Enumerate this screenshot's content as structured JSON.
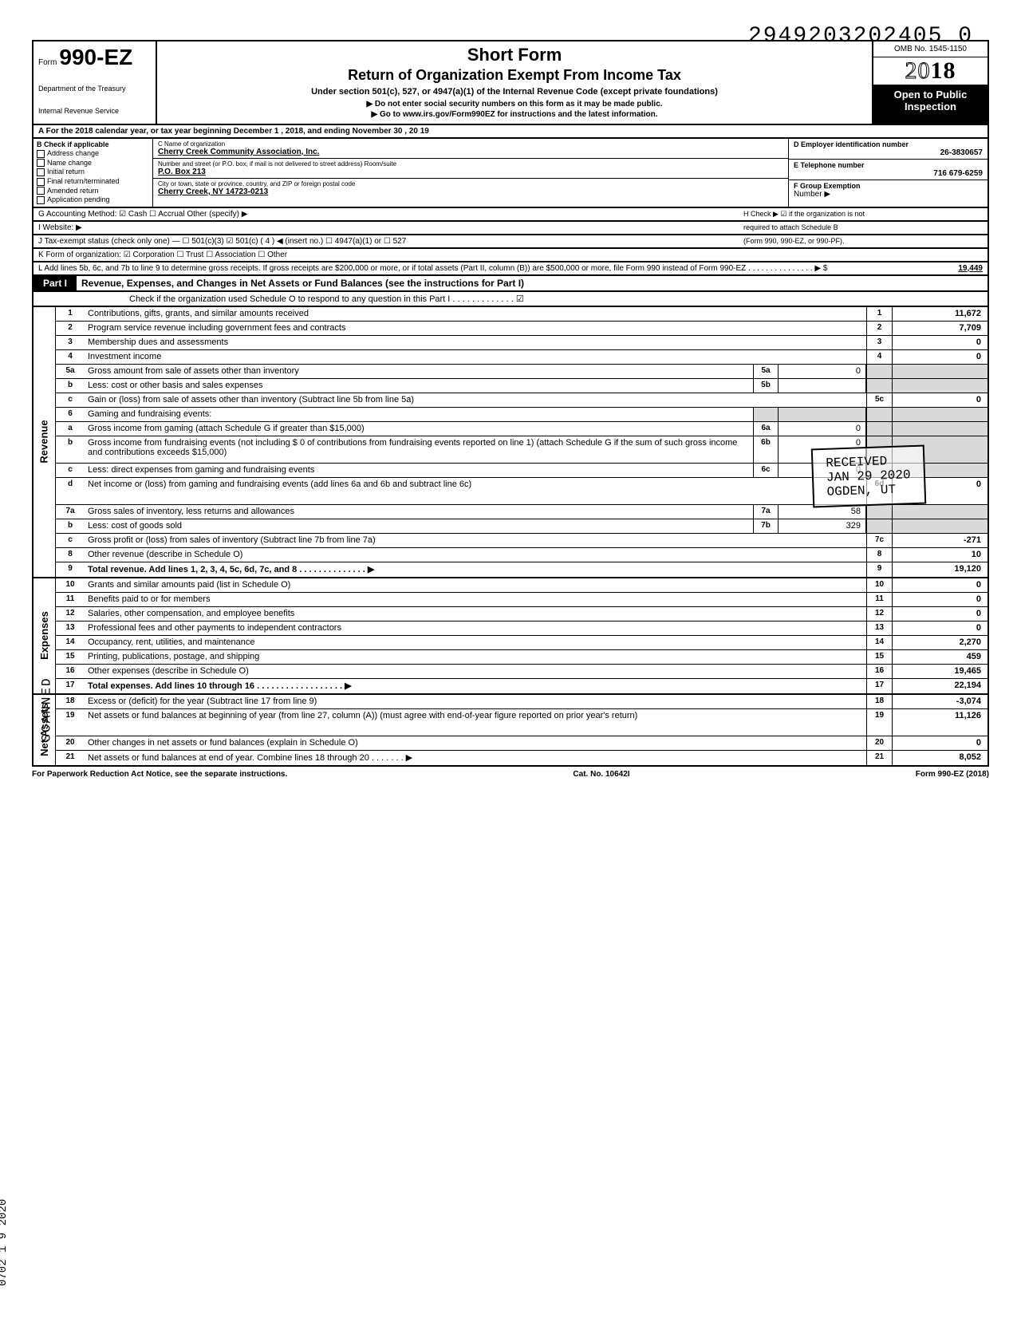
{
  "page_number_top": "2949203202405  0",
  "header": {
    "form_prefix": "Form",
    "form_number": "990-EZ",
    "small_form": "",
    "short_form": "Short Form",
    "return_title": "Return of Organization Exempt From Income Tax",
    "subtitle": "Under section 501(c), 527, or 4947(a)(1) of the Internal Revenue Code (except private foundations)",
    "line1": "▶ Do not enter social security numbers on this form as it may be made public.",
    "line2": "▶ Go to www.irs.gov/Form990EZ for instructions and the latest information.",
    "dept1": "Department of the Treasury",
    "dept2": "Internal Revenue Service",
    "omb": "OMB No. 1545-1150",
    "year": "2018",
    "open1": "Open to Public",
    "open2": "Inspection"
  },
  "rowA": "A  For the 2018 calendar year, or tax year beginning              December 1         , 2018, and ending           November 30        , 20   19",
  "colB": {
    "title": "B  Check if applicable",
    "items": [
      "Address change",
      "Name change",
      "Initial return",
      "Final return/terminated",
      "Amended return",
      "Application pending"
    ]
  },
  "colC": {
    "c_label": "C  Name of organization",
    "c_value": "Cherry Creek Community Association, Inc.",
    "street_label": "Number and street (or P.O. box, if mail is not delivered to street address)              Room/suite",
    "street_value": "P.O. Box 213",
    "city_label": "City or town, state or province, country, and ZIP or foreign postal code",
    "city_value": "Cherry Creek, NY 14723-0213"
  },
  "colR": {
    "d_label": "D Employer identification number",
    "d_value": "26-3830657",
    "e_label": "E Telephone number",
    "e_value": "716 679-6259",
    "f_label": "F Group Exemption",
    "f_label2": "Number ▶"
  },
  "rowG": {
    "left": "G  Accounting Method:    ☑ Cash    ☐ Accrual    Other (specify) ▶",
    "right": "H  Check ▶ ☑ if the organization is not"
  },
  "rowI": {
    "left": "I    Website: ▶",
    "right": "required to attach Schedule B"
  },
  "rowJ": {
    "left": "J  Tax-exempt status (check only one) — ☐ 501(c)(3)   ☑ 501(c) (  4  ) ◀ (insert no.)  ☐ 4947(a)(1) or   ☐ 527",
    "right": "(Form 990, 990-EZ, or 990-PF)."
  },
  "rowK": "K  Form of organization:   ☑ Corporation    ☐ Trust    ☐ Association    ☐ Other",
  "rowL": {
    "text": "L  Add lines 5b, 6c, and 7b to line 9 to determine gross receipts. If gross receipts are $200,000 or more, or if total assets (Part II, column (B)) are $500,000 or more, file Form 990 instead of Form 990-EZ  .  .  .  .  .  .  .  .  .  .  .  .  .  .  .  ▶   $",
    "value": "19,449"
  },
  "partI": {
    "label": "Part I",
    "title": "Revenue, Expenses, and Changes in Net Assets or Fund Balances (see the instructions for Part I)",
    "check": "Check if the organization used Schedule O to respond to any question in this Part I  .  .  .  .  .  .  .  .  .  .  .  .  .  ☑"
  },
  "stamp": {
    "l1": "RECEIVED",
    "l2": "JAN 29 2020",
    "l3": "OGDEN, UT"
  },
  "revenue_lines": [
    {
      "n": "1",
      "d": "Contributions, gifts, grants, and similar amounts received",
      "rn": "1",
      "rv": "11,672"
    },
    {
      "n": "2",
      "d": "Program service revenue including government fees and contracts",
      "rn": "2",
      "rv": "7,709"
    },
    {
      "n": "3",
      "d": "Membership dues and assessments",
      "rn": "3",
      "rv": "0"
    },
    {
      "n": "4",
      "d": "Investment income",
      "rn": "4",
      "rv": "0"
    },
    {
      "n": "5a",
      "d": "Gross amount from sale of assets other than inventory",
      "mn": "5a",
      "mv": "0",
      "shadeR": true
    },
    {
      "n": "b",
      "d": "Less: cost or other basis and sales expenses",
      "mn": "5b",
      "mv": "",
      "shadeR": true
    },
    {
      "n": "c",
      "d": "Gain or (loss) from sale of assets other than inventory (Subtract line 5b from line 5a)",
      "rn": "5c",
      "rv": "0"
    },
    {
      "n": "6",
      "d": "Gaming and fundraising events:",
      "shadeR": true,
      "shadeM": true
    },
    {
      "n": "a",
      "d": "Gross income from gaming (attach Schedule G if greater than $15,000)",
      "mn": "6a",
      "mv": "0",
      "shadeR": true
    },
    {
      "n": "b",
      "d": "Gross income from fundraising events (not including  $                 0 of contributions from fundraising events reported on line 1) (attach Schedule G if the sum of such gross income and contributions exceeds $15,000)",
      "mn": "6b",
      "mv": "0",
      "shadeR": true,
      "tall": true
    },
    {
      "n": "c",
      "d": "Less: direct expenses from gaming and fundraising events",
      "mn": "6c",
      "mv": "0",
      "shadeR": true
    },
    {
      "n": "d",
      "d": "Net income or (loss) from gaming and fundraising events (add lines 6a and 6b and subtract line 6c)",
      "rn": "6d",
      "rv": "0",
      "tall": true
    },
    {
      "n": "7a",
      "d": "Gross sales of inventory, less returns and allowances",
      "mn": "7a",
      "mv": "58",
      "shadeR": true
    },
    {
      "n": "b",
      "d": "Less: cost of goods sold",
      "mn": "7b",
      "mv": "329",
      "shadeR": true
    },
    {
      "n": "c",
      "d": "Gross profit or (loss) from sales of inventory (Subtract line 7b from line 7a)",
      "rn": "7c",
      "rv": "-271"
    },
    {
      "n": "8",
      "d": "Other revenue (describe in Schedule O)",
      "rn": "8",
      "rv": "10"
    },
    {
      "n": "9",
      "d": "Total revenue. Add lines 1, 2, 3, 4, 5c, 6d, 7c, and 8   .  .  .  .  .  .  .  .  .  .  .  .  .  .  ▶",
      "rn": "9",
      "rv": "19,120",
      "bold": true
    }
  ],
  "expense_lines": [
    {
      "n": "10",
      "d": "Grants and similar amounts paid (list in Schedule O)",
      "rn": "10",
      "rv": "0"
    },
    {
      "n": "11",
      "d": "Benefits paid to or for members",
      "rn": "11",
      "rv": "0"
    },
    {
      "n": "12",
      "d": "Salaries, other compensation, and employee benefits",
      "rn": "12",
      "rv": "0"
    },
    {
      "n": "13",
      "d": "Professional fees and other payments to independent contractors",
      "rn": "13",
      "rv": "0"
    },
    {
      "n": "14",
      "d": "Occupancy, rent, utilities, and maintenance",
      "rn": "14",
      "rv": "2,270"
    },
    {
      "n": "15",
      "d": "Printing, publications, postage, and shipping",
      "rn": "15",
      "rv": "459"
    },
    {
      "n": "16",
      "d": "Other expenses (describe in Schedule O)",
      "rn": "16",
      "rv": "19,465"
    },
    {
      "n": "17",
      "d": "Total expenses. Add lines 10 through 16  .  .  .  .  .  .  .  .  .  .  .  .  .  .  .  .  .  .  ▶",
      "rn": "17",
      "rv": "22,194",
      "bold": true
    }
  ],
  "netassets_lines": [
    {
      "n": "18",
      "d": "Excess or (deficit) for the year (Subtract line 17 from line 9)",
      "rn": "18",
      "rv": "-3,074"
    },
    {
      "n": "19",
      "d": "Net assets or fund balances at beginning of year (from line 27, column (A)) (must agree with end-of-year figure reported on prior year's return)",
      "rn": "19",
      "rv": "11,126",
      "tall": true
    },
    {
      "n": "20",
      "d": "Other changes in net assets or fund balances (explain in Schedule O)",
      "rn": "20",
      "rv": "0"
    },
    {
      "n": "21",
      "d": "Net assets or fund balances at end of year. Combine lines 18 through 20  .  .  .  .  .  .  .  ▶",
      "rn": "21",
      "rv": "8,052"
    }
  ],
  "side_labels": {
    "rev": "Revenue",
    "exp": "Expenses",
    "na": "Net Assets"
  },
  "footer": {
    "left": "For Paperwork Reduction Act Notice, see the separate instructions.",
    "mid": "Cat. No. 10642I",
    "right": "Form 990-EZ (2018)"
  },
  "scanned": "SCANNED",
  "datestamp": "0702  1 9 2020"
}
